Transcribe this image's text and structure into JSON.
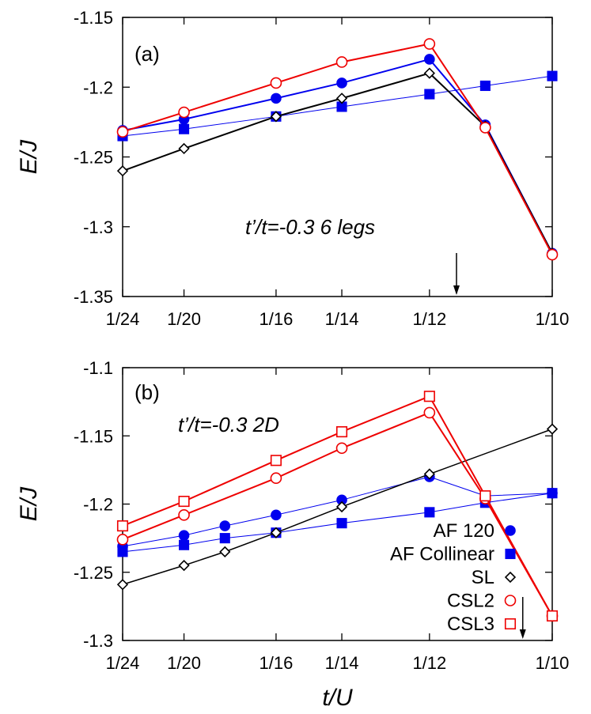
{
  "chart_data": [
    {
      "type": "line",
      "panel_label": "(a)",
      "annotation": "t’/t=-0.3 6 legs",
      "xlabel": "",
      "ylabel": "E/J",
      "ylim": [
        -1.35,
        -1.15
      ],
      "yticks": [
        "-1.15",
        "-1.2",
        "-1.25",
        "-1.3",
        "-1.35"
      ],
      "ytick_values": [
        -1.15,
        -1.2,
        -1.25,
        -1.3,
        -1.35
      ],
      "xlim": [
        0.041667,
        0.1
      ],
      "xticks": [
        "1/24",
        "1/20",
        "1/16",
        "1/14",
        "1/12",
        "1/10"
      ],
      "xtick_values": [
        0.041667,
        0.05,
        0.0625,
        0.071429,
        0.083333,
        0.1
      ],
      "arrow_x": 0.087,
      "series": [
        {
          "key": "AF120",
          "marker": "circle",
          "filled": true,
          "color": "#0000ee",
          "stroke_width": 2,
          "x": [
            0.041667,
            0.05,
            0.0625,
            0.071429,
            0.083333,
            0.090909,
            0.1
          ],
          "y": [
            -1.231,
            -1.223,
            -1.208,
            -1.197,
            -1.18,
            -1.227,
            -1.319
          ]
        },
        {
          "key": "AFCollinear",
          "marker": "square",
          "filled": true,
          "color": "#0000ee",
          "stroke_width": 1,
          "x": [
            0.041667,
            0.05,
            0.0625,
            0.071429,
            0.083333,
            0.090909,
            0.1
          ],
          "y": [
            -1.235,
            -1.23,
            -1.221,
            -1.214,
            -1.205,
            -1.199,
            -1.192
          ]
        },
        {
          "key": "SL",
          "marker": "diamond",
          "filled": false,
          "color": "#000000",
          "stroke_width": 2,
          "x": [
            0.041667,
            0.05,
            0.0625,
            0.071429,
            0.083333,
            0.090909,
            0.1
          ],
          "y": [
            -1.26,
            -1.244,
            -1.221,
            -1.208,
            -1.19,
            -1.228,
            -1.319
          ]
        },
        {
          "key": "CSL2",
          "marker": "circle",
          "filled": false,
          "color": "#ee0000",
          "stroke_width": 2,
          "x": [
            0.041667,
            0.05,
            0.0625,
            0.071429,
            0.083333,
            0.090909,
            0.1
          ],
          "y": [
            -1.232,
            -1.218,
            -1.197,
            -1.182,
            -1.169,
            -1.229,
            -1.32
          ]
        }
      ]
    },
    {
      "type": "line",
      "panel_label": "(b)",
      "annotation": "t’/t=-0.3 2D",
      "xlabel": "t/U",
      "ylabel": "E/J",
      "ylim": [
        -1.3,
        -1.1
      ],
      "yticks": [
        "-1.1",
        "-1.15",
        "-1.2",
        "-1.25",
        "-1.3"
      ],
      "ytick_values": [
        -1.1,
        -1.15,
        -1.2,
        -1.25,
        -1.3
      ],
      "xlim": [
        0.041667,
        0.1
      ],
      "xticks": [
        "1/24",
        "1/20",
        "1/16",
        "1/14",
        "1/12",
        "1/10"
      ],
      "xtick_values": [
        0.041667,
        0.05,
        0.0625,
        0.071429,
        0.083333,
        0.1
      ],
      "arrow_x": 0.096,
      "legend": {
        "placement": "bottom-right",
        "entries": [
          {
            "label": "AF 120",
            "key": "AF120"
          },
          {
            "label": "AF Collinear",
            "key": "AFCollinear"
          },
          {
            "label": "SL",
            "key": "SL"
          },
          {
            "label": "CSL2",
            "key": "CSL2"
          },
          {
            "label": "CSL3",
            "key": "CSL3"
          }
        ]
      },
      "series": [
        {
          "key": "AF120",
          "marker": "circle",
          "filled": true,
          "color": "#0000ee",
          "stroke_width": 1,
          "x": [
            0.041667,
            0.05,
            0.055556,
            0.0625,
            0.071429,
            0.083333,
            0.090909,
            0.1
          ],
          "y": [
            -1.231,
            -1.223,
            -1.216,
            -1.208,
            -1.197,
            -1.18,
            -1.194,
            -1.192
          ]
        },
        {
          "key": "AFCollinear",
          "marker": "square",
          "filled": true,
          "color": "#0000ee",
          "stroke_width": 1,
          "x": [
            0.041667,
            0.05,
            0.055556,
            0.0625,
            0.071429,
            0.083333,
            0.090909,
            0.1
          ],
          "y": [
            -1.235,
            -1.23,
            -1.225,
            -1.221,
            -1.214,
            -1.206,
            -1.199,
            -1.192
          ]
        },
        {
          "key": "SL",
          "marker": "diamond",
          "filled": false,
          "color": "#000000",
          "stroke_width": 1.5,
          "x": [
            0.041667,
            0.05,
            0.055556,
            0.0625,
            0.071429,
            0.083333,
            0.1
          ],
          "y": [
            -1.259,
            -1.245,
            -1.235,
            -1.221,
            -1.202,
            -1.178,
            -1.145
          ]
        },
        {
          "key": "CSL2",
          "marker": "circle",
          "filled": false,
          "color": "#ee0000",
          "stroke_width": 2,
          "x": [
            0.041667,
            0.05,
            0.0625,
            0.071429,
            0.083333,
            0.090909,
            0.1
          ],
          "y": [
            -1.226,
            -1.208,
            -1.181,
            -1.159,
            -1.133,
            -1.196,
            -1.282
          ]
        },
        {
          "key": "CSL3",
          "marker": "square",
          "filled": false,
          "color": "#ee0000",
          "stroke_width": 2,
          "x": [
            0.041667,
            0.05,
            0.0625,
            0.071429,
            0.083333,
            0.090909,
            0.1
          ],
          "y": [
            -1.216,
            -1.198,
            -1.168,
            -1.147,
            -1.121,
            -1.194,
            -1.282
          ]
        }
      ]
    }
  ]
}
